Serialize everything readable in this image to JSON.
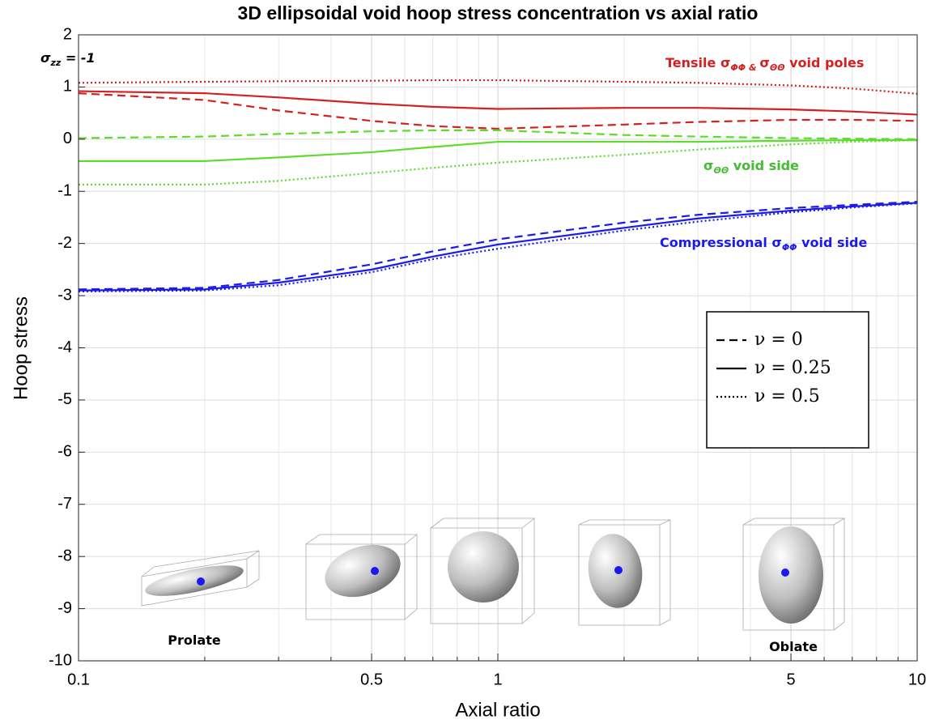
{
  "chart_data": {
    "type": "line",
    "title": "3D ellipsoidal void hoop stress concentration vs axial ratio",
    "x_label": "Axial ratio",
    "y_label": "Hoop stress",
    "x": [
      0.1,
      0.2,
      0.3,
      0.5,
      0.7,
      1,
      2,
      3,
      5,
      7,
      10
    ],
    "xscale": "log",
    "xlim": [
      0.1,
      10
    ],
    "xticks": [
      0.1,
      0.5,
      1,
      5,
      10
    ],
    "xminor": [
      0.2,
      0.3,
      0.4,
      0.6,
      0.7,
      0.8,
      0.9,
      2,
      3,
      4,
      6,
      7,
      8,
      9
    ],
    "ylim": [
      -10,
      2
    ],
    "yticks": [
      -10,
      -9,
      -8,
      -7,
      -6,
      -5,
      -4,
      -3,
      -2,
      -1,
      0,
      1,
      2
    ],
    "grid": true,
    "linestyles": [
      {
        "label": "ν = 0",
        "dash": "dashed"
      },
      {
        "label": "ν = 0.25",
        "dash": "solid"
      },
      {
        "label": "ν = 0.5",
        "dash": "dotted"
      }
    ],
    "series": [
      {
        "color": "#d42020",
        "style": 0,
        "values": [
          0.88,
          0.75,
          0.55,
          0.35,
          0.25,
          0.2,
          0.28,
          0.33,
          0.37,
          0.37,
          0.35
        ]
      },
      {
        "color": "#d42020",
        "style": 1,
        "values": [
          0.92,
          0.88,
          0.8,
          0.68,
          0.62,
          0.58,
          0.6,
          0.6,
          0.57,
          0.53,
          0.47
        ]
      },
      {
        "color": "#d42020",
        "style": 2,
        "values": [
          1.08,
          1.1,
          1.11,
          1.12,
          1.13,
          1.13,
          1.1,
          1.08,
          1.03,
          0.97,
          0.87
        ]
      },
      {
        "color": "#5ddc2e",
        "style": 0,
        "values": [
          0.02,
          0.05,
          0.1,
          0.15,
          0.17,
          0.17,
          0.08,
          0.05,
          0.02,
          0.01,
          0
        ]
      },
      {
        "color": "#5ddc2e",
        "style": 1,
        "values": [
          -0.42,
          -0.42,
          -0.35,
          -0.25,
          -0.15,
          -0.05,
          -0.05,
          -0.05,
          -0.03,
          -0.02,
          -0.02
        ]
      },
      {
        "color": "#5ddc2e",
        "style": 2,
        "values": [
          -0.87,
          -0.87,
          -0.8,
          -0.65,
          -0.55,
          -0.45,
          -0.3,
          -0.2,
          -0.1,
          -0.05,
          -0.02
        ]
      },
      {
        "color": "#1a1aee",
        "style": 0,
        "values": [
          -2.88,
          -2.85,
          -2.7,
          -2.4,
          -2.15,
          -1.92,
          -1.6,
          -1.45,
          -1.32,
          -1.26,
          -1.2
        ]
      },
      {
        "color": "#1a1aee",
        "style": 1,
        "values": [
          -2.9,
          -2.88,
          -2.75,
          -2.5,
          -2.25,
          -2.02,
          -1.7,
          -1.52,
          -1.37,
          -1.29,
          -1.22
        ]
      },
      {
        "color": "#1a1aee",
        "style": 2,
        "values": [
          -2.92,
          -2.9,
          -2.8,
          -2.55,
          -2.3,
          -2.1,
          -1.75,
          -1.58,
          -1.4,
          -1.31,
          -1.23
        ]
      }
    ],
    "annotations": [
      {
        "color": "#000000",
        "parts": [
          {
            "text": "σ"
          },
          {
            "sub": "zz"
          },
          {
            "text": " = -1"
          }
        ]
      },
      {
        "color": "#d42020",
        "parts": [
          {
            "text": "Tensile σ"
          },
          {
            "sub": "ΦΦ & "
          },
          {
            "text": "σ"
          },
          {
            "sub": "ΘΘ"
          },
          {
            "text": " void poles"
          }
        ]
      },
      {
        "color": "#44bb33",
        "parts": [
          {
            "text": "σ"
          },
          {
            "sub": "ΘΘ"
          },
          {
            "text": " void side"
          }
        ]
      },
      {
        "color": "#1a1aee",
        "parts": [
          {
            "text": "Compressional σ"
          },
          {
            "sub": "ΦΦ"
          },
          {
            "text": " void side"
          }
        ]
      },
      {
        "color": "#000000",
        "parts": [
          {
            "text": "Prolate"
          }
        ]
      },
      {
        "color": "#000000",
        "parts": [
          {
            "text": "Oblate"
          }
        ]
      }
    ]
  }
}
